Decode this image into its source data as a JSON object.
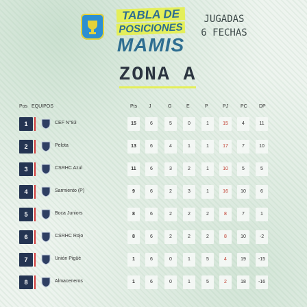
{
  "header": {
    "brand_line1": "TABLA DE",
    "brand_line2": "POSICIONES",
    "brand_line3": "MAMIS",
    "jugadas_line1": "JUGADAS",
    "jugadas_line2": "6 FECHAS",
    "zone_title": "ZONA A"
  },
  "table": {
    "headers": {
      "pos": "Pos",
      "team": "EQUIPOS",
      "pts": "Pts",
      "j": "J",
      "g": "G",
      "e": "E",
      "p": "P",
      "pj": "PJ",
      "pc": "PC",
      "dp": "DP"
    },
    "rows": [
      {
        "pos": "1",
        "team": "CEF N°83",
        "pts": "15",
        "j": "6",
        "g": "5",
        "e": "0",
        "p": "1",
        "pj": "15",
        "pc": "4",
        "dp": "11"
      },
      {
        "pos": "2",
        "team": "Pelota",
        "pts": "13",
        "j": "6",
        "g": "4",
        "e": "1",
        "p": "1",
        "pj": "17",
        "pc": "7",
        "dp": "10"
      },
      {
        "pos": "3",
        "team": "CSRHC Azul",
        "pts": "11",
        "j": "6",
        "g": "3",
        "e": "2",
        "p": "1",
        "pj": "10",
        "pc": "5",
        "dp": "5"
      },
      {
        "pos": "4",
        "team": "Sarmiento (P)",
        "pts": "9",
        "j": "6",
        "g": "2",
        "e": "3",
        "p": "1",
        "pj": "16",
        "pc": "10",
        "dp": "6"
      },
      {
        "pos": "5",
        "team": "Boca Juniors",
        "pts": "8",
        "j": "6",
        "g": "2",
        "e": "2",
        "p": "2",
        "pj": "8",
        "pc": "7",
        "dp": "1"
      },
      {
        "pos": "6",
        "team": "CSRHC Rojo",
        "pts": "8",
        "j": "6",
        "g": "2",
        "e": "2",
        "p": "2",
        "pj": "8",
        "pc": "10",
        "dp": "-2"
      },
      {
        "pos": "7",
        "team": "Unión Pigüé",
        "pts": "1",
        "j": "6",
        "g": "0",
        "e": "1",
        "p": "5",
        "pj": "4",
        "pc": "19",
        "dp": "-15"
      },
      {
        "pos": "8",
        "team": "Almaceneros",
        "pts": "1",
        "j": "6",
        "g": "0",
        "e": "1",
        "p": "5",
        "pj": "2",
        "pc": "18",
        "dp": "-16"
      }
    ]
  },
  "icons": [
    "trophy-logo-icon",
    "team-shield-icon"
  ],
  "colors": {
    "position_badge": "#243452",
    "accent": "#d33b3b",
    "brand_yellow": "#e4ef5a",
    "brand_blue": "#2e6e91"
  }
}
